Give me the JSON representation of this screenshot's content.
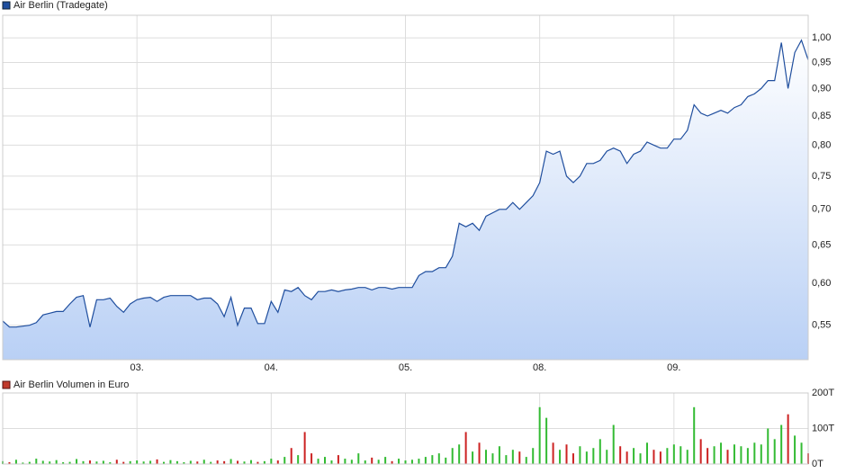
{
  "chart_data": [
    {
      "type": "line",
      "series": [
        {
          "name": "Air Berlin (Tradegate)",
          "color": "#1f4e9e",
          "values": [
            0.555,
            0.548,
            0.548,
            0.549,
            0.55,
            0.553,
            0.562,
            0.564,
            0.566,
            0.566,
            0.575,
            0.583,
            0.585,
            0.548,
            0.58,
            0.58,
            0.582,
            0.572,
            0.565,
            0.575,
            0.58,
            0.582,
            0.583,
            0.578,
            0.583,
            0.585,
            0.585,
            0.585,
            0.585,
            0.58,
            0.582,
            0.582,
            0.575,
            0.56,
            0.583,
            0.55,
            0.57,
            0.57,
            0.552,
            0.552,
            0.578,
            0.565,
            0.592,
            0.59,
            0.595,
            0.585,
            0.58,
            0.59,
            0.59,
            0.592,
            0.59,
            0.592,
            0.593,
            0.595,
            0.595,
            0.592,
            0.595,
            0.595,
            0.593,
            0.595,
            0.595,
            0.595,
            0.61,
            0.615,
            0.615,
            0.62,
            0.62,
            0.635,
            0.68,
            0.675,
            0.68,
            0.67,
            0.69,
            0.695,
            0.7,
            0.7,
            0.71,
            0.7,
            0.71,
            0.72,
            0.74,
            0.79,
            0.785,
            0.79,
            0.75,
            0.74,
            0.75,
            0.77,
            0.77,
            0.775,
            0.79,
            0.795,
            0.79,
            0.77,
            0.785,
            0.79,
            0.805,
            0.8,
            0.795,
            0.795,
            0.81,
            0.81,
            0.825,
            0.87,
            0.855,
            0.85,
            0.855,
            0.86,
            0.855,
            0.865,
            0.87,
            0.885,
            0.89,
            0.9,
            0.915,
            0.915,
            0.99,
            0.9,
            0.97,
            0.995,
            0.955
          ]
        }
      ],
      "xlim": [
        0,
        120
      ],
      "xticks": [
        {
          "value": 20,
          "label": "03."
        },
        {
          "value": 40,
          "label": "04."
        },
        {
          "value": 60,
          "label": "05."
        },
        {
          "value": 80,
          "label": "08."
        },
        {
          "value": 100,
          "label": "09."
        }
      ],
      "ylim": [
        0.512,
        1.048
      ],
      "log_y": true,
      "yticks": [
        {
          "value": 0.55,
          "label": "0,55"
        },
        {
          "value": 0.6,
          "label": "0,60"
        },
        {
          "value": 0.65,
          "label": "0,65"
        },
        {
          "value": 0.7,
          "label": "0,70"
        },
        {
          "value": 0.75,
          "label": "0,75"
        },
        {
          "value": 0.8,
          "label": "0,80"
        },
        {
          "value": 0.85,
          "label": "0,85"
        },
        {
          "value": 0.9,
          "label": "0,90"
        },
        {
          "value": 0.95,
          "label": "0,95"
        },
        {
          "value": 1.0,
          "label": "1,00"
        }
      ],
      "grid": true,
      "area_color": "#b9d0f5"
    },
    {
      "type": "bar",
      "series": [
        {
          "name": "Air Berlin Volumen in Euro",
          "color": "#c0392b",
          "values": [
            8000,
            5000,
            12000,
            4000,
            6000,
            15000,
            9000,
            7000,
            11000,
            5000,
            6000,
            14000,
            8000,
            10000,
            7000,
            9000,
            5000,
            12000,
            6000,
            8000,
            10000,
            7000,
            9000,
            13000,
            6000,
            11000,
            8000,
            5000,
            9000,
            7000,
            12000,
            6000,
            10000,
            8000,
            14000,
            9000,
            7000,
            11000,
            6000,
            8000,
            15000,
            10000,
            20000,
            45000,
            25000,
            90000,
            30000,
            15000,
            20000,
            10000,
            25000,
            15000,
            12000,
            30000,
            10000,
            18000,
            12000,
            20000,
            8000,
            15000,
            10000,
            12000,
            15000,
            20000,
            25000,
            30000,
            18000,
            45000,
            55000,
            90000,
            35000,
            60000,
            40000,
            30000,
            50000,
            25000,
            40000,
            35000,
            20000,
            45000,
            160000,
            130000,
            60000,
            40000,
            55000,
            30000,
            50000,
            35000,
            45000,
            70000,
            40000,
            110000,
            50000,
            35000,
            45000,
            30000,
            60000,
            40000,
            35000,
            45000,
            55000,
            50000,
            40000,
            160000,
            70000,
            45000,
            50000,
            60000,
            40000,
            55000,
            50000,
            45000,
            60000,
            55000,
            100000,
            70000,
            110000,
            140000,
            80000,
            60000,
            30000
          ]
        }
      ],
      "ylim": [
        0,
        200000
      ],
      "yticks": [
        {
          "value": 0,
          "label": "0T"
        },
        {
          "value": 100000,
          "label": "100T"
        },
        {
          "value": 200000,
          "label": "200T"
        }
      ],
      "grid": true,
      "up_color": "#33bb33",
      "down_color": "#cc2222"
    }
  ]
}
